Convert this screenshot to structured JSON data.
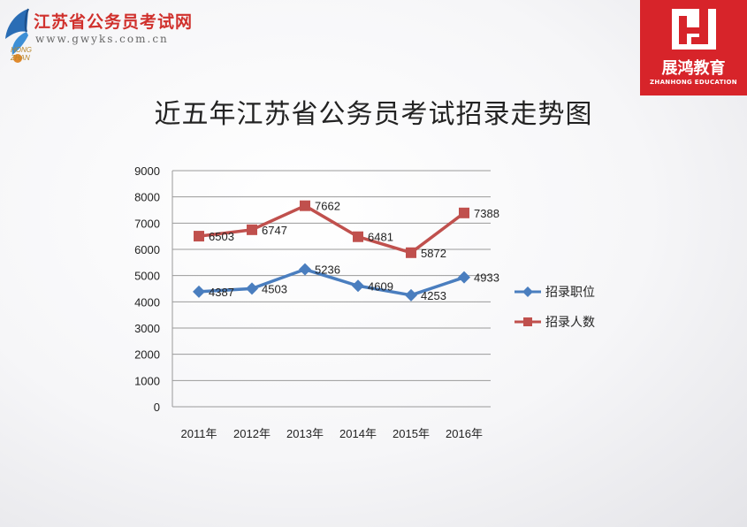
{
  "header": {
    "site_name": "江苏省公务员考试网",
    "site_url": "www.gwyks.com.cn",
    "brand_small_1": "HONG",
    "brand_small_2": "ZHAN",
    "brand_cn": "展鸿教育",
    "brand_en": "ZHANHONG EDUCATION"
  },
  "page_title": "近五年江苏省公务员考试招录走势图",
  "chart_data": {
    "type": "line",
    "title": "",
    "xlabel": "",
    "ylabel": "",
    "categories": [
      "2011年",
      "2012年",
      "2013年",
      "2014年",
      "2015年",
      "2016年"
    ],
    "ylim": [
      0,
      9000
    ],
    "yticks": [
      0,
      1000,
      2000,
      3000,
      4000,
      5000,
      6000,
      7000,
      8000,
      9000
    ],
    "grid": true,
    "legend_position": "right",
    "series": [
      {
        "name": "招录职位",
        "values": [
          4387,
          4503,
          5236,
          4609,
          4253,
          4933
        ],
        "color": "#4a7ebf",
        "marker": "diamond"
      },
      {
        "name": "招录人数",
        "values": [
          6503,
          6747,
          7662,
          6481,
          5872,
          7388
        ],
        "color": "#c0504d",
        "marker": "square"
      }
    ]
  }
}
